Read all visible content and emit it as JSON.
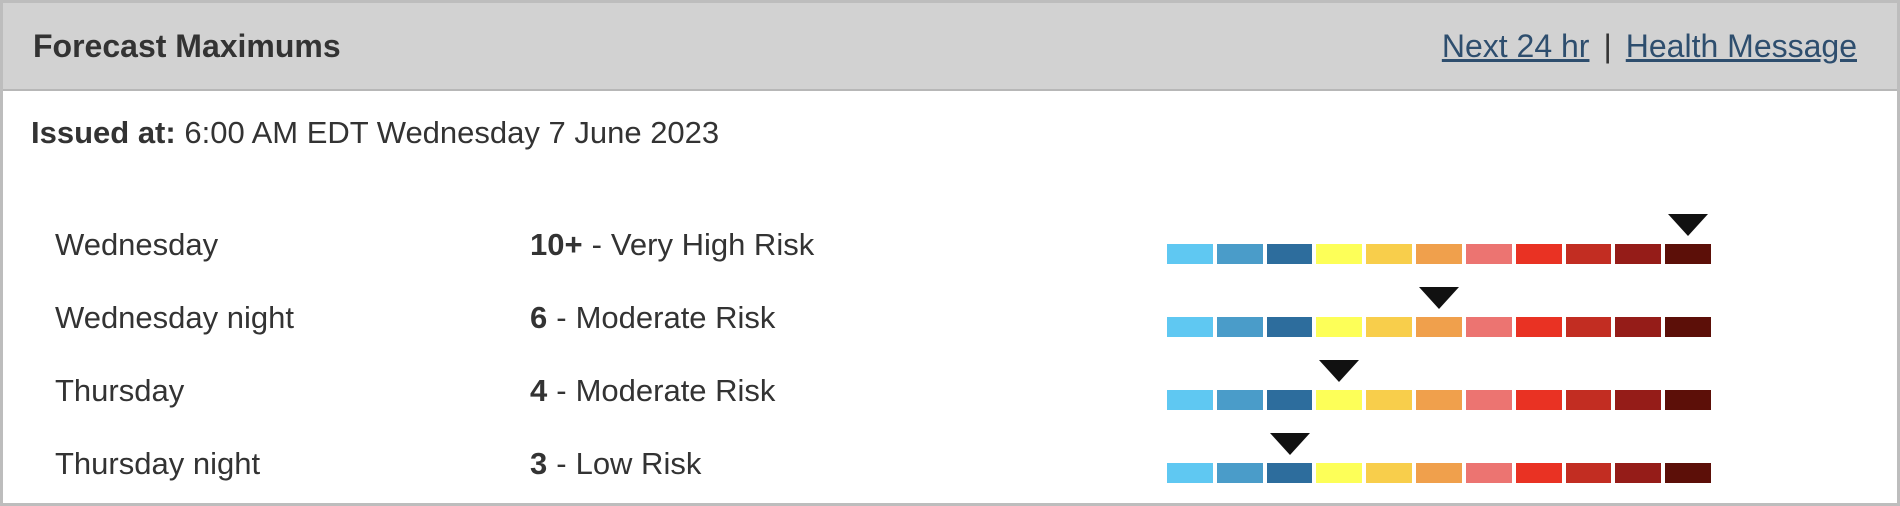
{
  "header": {
    "title": "Forecast Maximums",
    "link_next24": "Next 24 hr",
    "separator": "|",
    "link_health": "Health Message"
  },
  "issued": {
    "label": "Issued at:",
    "value": "6:00 AM EDT Wednesday 7 June 2023"
  },
  "scale": {
    "segment_colors": [
      "#5FC8F2",
      "#4A9CC9",
      "#2D6D9D",
      "#FDFF58",
      "#F8CE4B",
      "#F0A04C",
      "#EC7471",
      "#E93223",
      "#C22D22",
      "#951C18",
      "#5C0F08"
    ],
    "marker_color": "#111111"
  },
  "rows": [
    {
      "period": "Wednesday",
      "value": "10+",
      "separator": "-",
      "risk": "Very High Risk",
      "marker_segment": 11
    },
    {
      "period": "Wednesday night",
      "value": "6",
      "separator": "-",
      "risk": "Moderate Risk",
      "marker_segment": 6
    },
    {
      "period": "Thursday",
      "value": "4",
      "separator": "-",
      "risk": "Moderate Risk",
      "marker_segment": 4
    },
    {
      "period": "Thursday night",
      "value": "3",
      "separator": "-",
      "risk": "Low Risk",
      "marker_segment": 3
    }
  ],
  "colors": {
    "header_bg": "#D2D2D2",
    "border": "#BDBDBD",
    "link": "#2E4E6E",
    "text": "#333333"
  }
}
